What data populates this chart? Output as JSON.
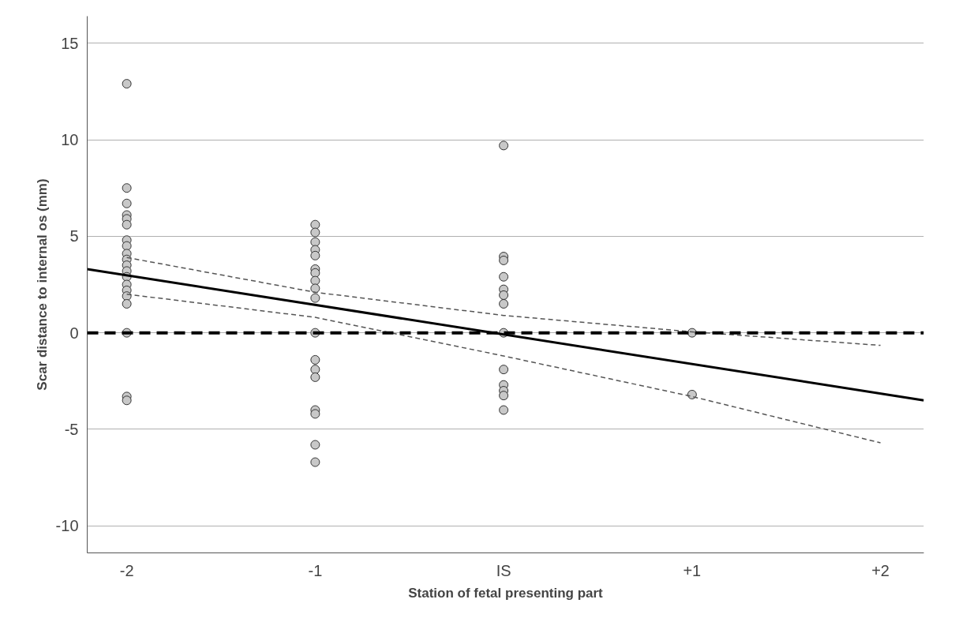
{
  "chart_data": {
    "type": "scatter",
    "xlabel": "Station of fetal presenting part",
    "ylabel": "Scar distance to internal os (mm)",
    "xlim": [
      -2.21,
      2.23
    ],
    "ylim": [
      -11.4,
      16.4
    ],
    "xticks": [
      {
        "value": -2,
        "label": "-2"
      },
      {
        "value": -1,
        "label": "-1"
      },
      {
        "value": 0,
        "label": "IS"
      },
      {
        "value": 1,
        "label": "+1"
      },
      {
        "value": 2,
        "label": "+2"
      }
    ],
    "yticks": [
      -10,
      -5,
      0,
      5,
      10,
      15
    ],
    "grid": "y",
    "marker": "circle",
    "ref_lines": [
      {
        "axis": "y",
        "value": 0,
        "color": "#000000",
        "line_style": "dashed"
      }
    ],
    "series": [
      {
        "color": "#c8c8c8",
        "x": [
          -2,
          -2,
          -2,
          -2,
          -2,
          -2,
          -2,
          -2,
          -2,
          -2,
          -2,
          -2,
          -2,
          -2,
          -2,
          -2,
          -2,
          -2,
          -2,
          -2,
          -1,
          -1,
          -1,
          -1,
          -1,
          -1,
          -1,
          -1,
          -1,
          -1,
          -1,
          -1,
          -1,
          -1,
          -1,
          -1,
          -1,
          -1,
          0,
          0,
          0,
          0,
          0,
          0,
          0,
          0,
          0,
          0,
          0,
          0,
          0,
          1,
          1
        ],
        "values": [
          12.9,
          7.5,
          6.7,
          6.1,
          5.9,
          5.6,
          4.8,
          4.5,
          4.1,
          3.8,
          3.5,
          3.2,
          2.9,
          2.5,
          2.2,
          1.9,
          1.5,
          0,
          -3.3,
          -3.5,
          5.6,
          5.2,
          4.7,
          4.3,
          4.0,
          3.3,
          3.1,
          2.7,
          2.3,
          1.8,
          0,
          -1.4,
          -1.9,
          -2.3,
          -4.0,
          -4.2,
          -5.8,
          -6.7,
          9.7,
          3.95,
          3.75,
          2.9,
          2.25,
          1.95,
          1.5,
          0,
          -1.9,
          -2.7,
          -3.0,
          -3.25,
          -4.0,
          0,
          -3.2
        ]
      },
      {
        "type": "line",
        "color": "#000000",
        "line_style": "solid",
        "marker": "none",
        "x": [
          -2.21,
          2.23
        ],
        "values": [
          3.3,
          -3.5
        ]
      },
      {
        "type": "line",
        "color": "#555555",
        "line_style": "dashed",
        "marker": "none",
        "x": [
          -2,
          -1,
          0,
          1,
          2
        ],
        "values": [
          3.9,
          2.1,
          0.9,
          0.05,
          -0.65
        ]
      },
      {
        "type": "line",
        "color": "#555555",
        "line_style": "dashed",
        "marker": "none",
        "x": [
          -2,
          -1,
          0,
          1,
          2
        ],
        "values": [
          2.0,
          0.8,
          -1.2,
          -3.3,
          -5.7
        ]
      }
    ]
  }
}
